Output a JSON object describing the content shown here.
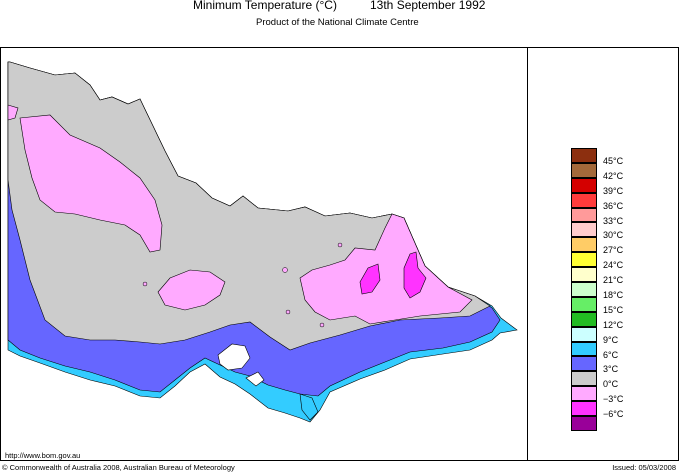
{
  "map": {
    "title": "Minimum Temperature (°C)",
    "date": "13th September 1992",
    "subtitle": "Product of the National Climate Centre",
    "url": "http://www.bom.gov.au",
    "copyright": "© Commonwealth of Australia 2008, Australian Bureau of Meteorology",
    "issued": "Issued: 05/03/2008"
  },
  "legend": {
    "items": [
      {
        "label": "45°C",
        "color": "#8c2f0f"
      },
      {
        "label": "42°C",
        "color": "#a3693a"
      },
      {
        "label": "39°C",
        "color": "#d40000"
      },
      {
        "label": "36°C",
        "color": "#ff3b3b"
      },
      {
        "label": "33°C",
        "color": "#ff9a9a"
      },
      {
        "label": "30°C",
        "color": "#ffcccc"
      },
      {
        "label": "27°C",
        "color": "#ffcc66"
      },
      {
        "label": "24°C",
        "color": "#ffff33"
      },
      {
        "label": "21°C",
        "color": "#ffffcc"
      },
      {
        "label": "18°C",
        "color": "#ccffcc"
      },
      {
        "label": "15°C",
        "color": "#66ee66"
      },
      {
        "label": "12°C",
        "color": "#22bb22"
      },
      {
        "label": "9°C",
        "color": "#ccffff"
      },
      {
        "label": "6°C",
        "color": "#33ccff"
      },
      {
        "label": "3°C",
        "color": "#6666ff"
      },
      {
        "label": "0°C",
        "color": "#cccccc"
      },
      {
        "label": "−3°C",
        "color": "#ffaaff"
      },
      {
        "label": "−6°C",
        "color": "#ff33ff"
      },
      {
        "label": "",
        "color": "#990099"
      }
    ]
  }
}
